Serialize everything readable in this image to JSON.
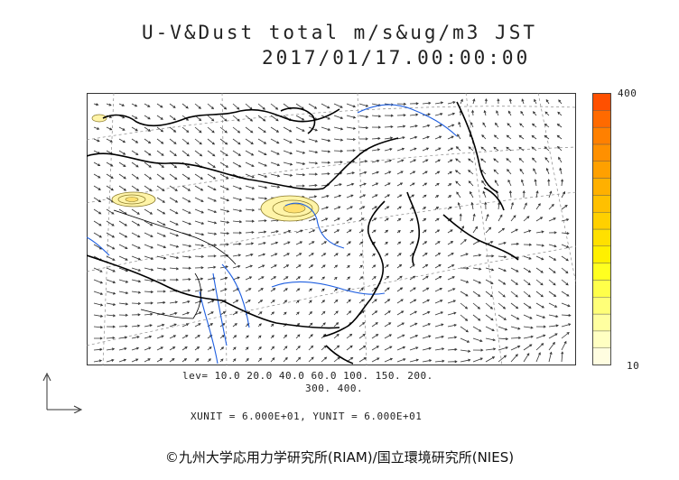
{
  "header": {
    "title": "U-V&Dust total m/s&ug/m3 JST",
    "datetime": "2017/01/17.00:00:00"
  },
  "levels": {
    "line1": "lev= 10.0 20.0 40.0 60.0 100. 150. 200.",
    "line2": "300. 400."
  },
  "units_line": "XUNIT = 6.000E+01, YUNIT = 6.000E+01",
  "copyright": "©九州大学応用力学研究所(RIAM)/国立環境研究所(NIES)",
  "colorbar": {
    "max_label": "400",
    "min_label": "10",
    "colors": [
      "#fffde0",
      "#ffffc2",
      "#ffffa0",
      "#ffff78",
      "#ffff4a",
      "#ffff20",
      "#fff000",
      "#ffe000",
      "#ffd000",
      "#ffc000",
      "#ffb000",
      "#ffa000",
      "#ff9000",
      "#ff8000",
      "#ff6a00",
      "#ff5000"
    ]
  },
  "colors": {
    "coastline": "#000000",
    "rivers": "#1f5fe0",
    "dust_fill": "#fff4a8",
    "dust_contour": "#8a7a2a",
    "wind_vectors": "#333333",
    "grid": "#888888"
  }
}
